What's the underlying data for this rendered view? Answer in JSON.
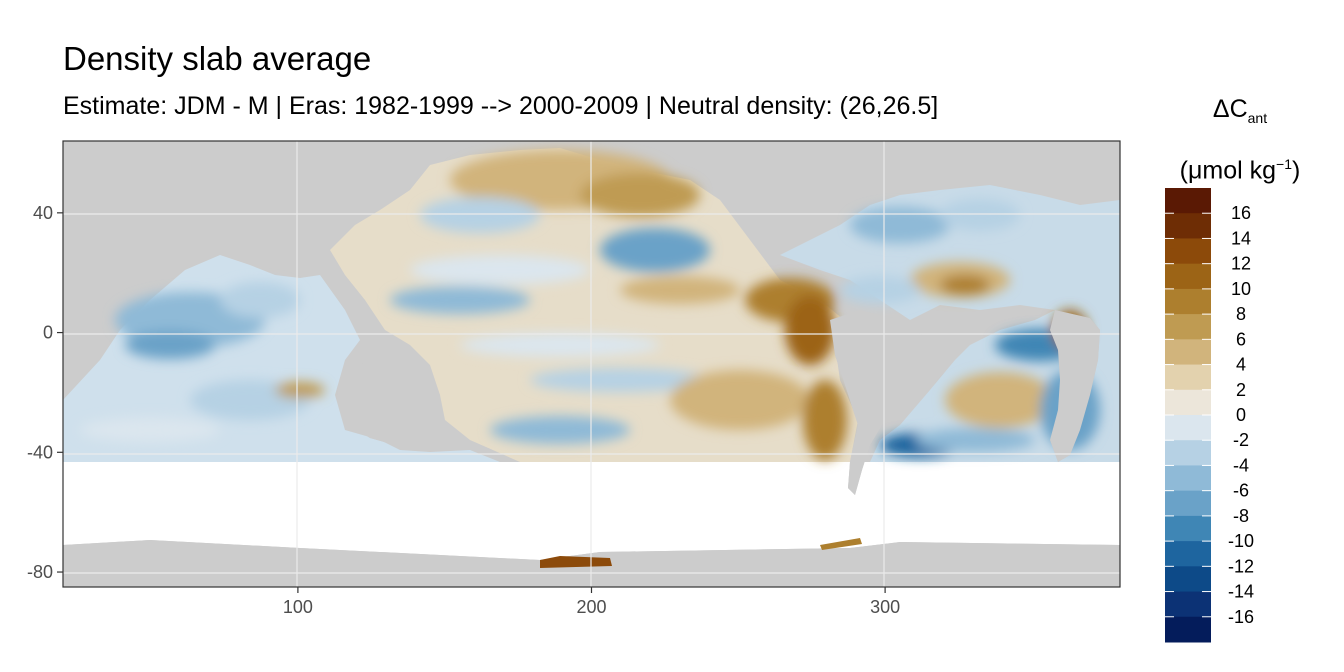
{
  "title": "Density slab average",
  "subtitle": "Estimate: JDM - M | Eras: 1982-1999 --> 2000-2009 | Neutral density: (26,26.5]",
  "legend": {
    "symbol": "ΔC",
    "symbol_sub": "ant",
    "unit_open": "(μmol kg",
    "unit_sup": "−1",
    "unit_close": ")",
    "labels": [
      "16",
      "14",
      "12",
      "10",
      "8",
      "6",
      "4",
      "2",
      "0",
      "-2",
      "-4",
      "-6",
      "-8",
      "-10",
      "-12",
      "-14",
      "-16"
    ],
    "colors": [
      "#5a1904",
      "#6e2d05",
      "#8c4a0a",
      "#9c6416",
      "#ad7f2e",
      "#bf9b52",
      "#d1b47c",
      "#e3d2ae",
      "#ece6da",
      "#dbe6ee",
      "#b6d1e4",
      "#8fbad7",
      "#6aa2c8",
      "#3f86b5",
      "#1e659f",
      "#0d4a88",
      "#0c3275",
      "#041c5b"
    ]
  },
  "chart_data": {
    "type": "heatmap",
    "xlim": [
      20,
      380
    ],
    "ylim": [
      -85,
      64
    ],
    "x_ticks": [
      100,
      200,
      300
    ],
    "y_ticks": [
      40,
      0,
      -40,
      -80
    ],
    "grid": true,
    "land_color": "#cccccc",
    "nodata_color": "#ffffff"
  }
}
